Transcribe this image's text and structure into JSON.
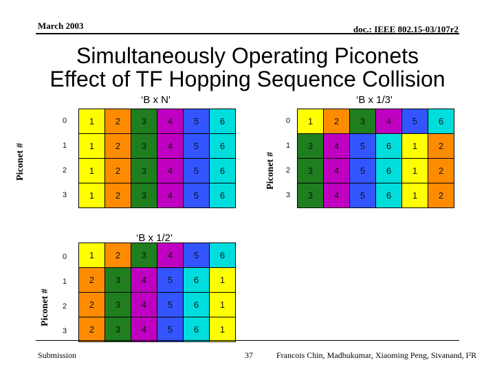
{
  "header": {
    "date": "March 2003",
    "doc_id": "doc.: IEEE 802.15-03/107r2"
  },
  "title": {
    "line1": "Simultaneously Operating Piconets",
    "line2": "Effect of TF Hopping Sequence Collision"
  },
  "colors": {
    "1": "#ffff00",
    "2": "#ff8c00",
    "3": "#1f7f1f",
    "4": "#c000c0",
    "5": "#3355ff",
    "6": "#00dddd"
  },
  "grids": [
    {
      "label": "‘B x N'",
      "axis_label": "Piconet #",
      "row_labels": [
        "0",
        "1",
        "2",
        "3"
      ],
      "rows": [
        [
          "1",
          "2",
          "3",
          "4",
          "5",
          "6"
        ],
        [
          "1",
          "2",
          "3",
          "4",
          "5",
          "6"
        ],
        [
          "1",
          "2",
          "3",
          "4",
          "5",
          "6"
        ],
        [
          "1",
          "2",
          "3",
          "4",
          "5",
          "6"
        ]
      ]
    },
    {
      "label": "‘B x 1/3'",
      "axis_label": "Piconet #",
      "row_labels": [
        "0",
        "1",
        "2",
        "3"
      ],
      "rows": [
        [
          "1",
          "2",
          "3",
          "4",
          "5",
          "6"
        ],
        [
          "3",
          "4",
          "5",
          "6",
          "1",
          "2"
        ],
        [
          "3",
          "4",
          "5",
          "6",
          "1",
          "2"
        ],
        [
          "3",
          "4",
          "5",
          "6",
          "1",
          "2"
        ]
      ]
    },
    {
      "label": "‘B x 1/2'",
      "axis_label": "Piconet #",
      "row_labels": [
        "0",
        "1",
        "2",
        "3"
      ],
      "rows": [
        [
          "1",
          "2",
          "3",
          "4",
          "5",
          "6"
        ],
        [
          "2",
          "3",
          "4",
          "5",
          "6",
          "1"
        ],
        [
          "2",
          "3",
          "4",
          "5",
          "6",
          "1"
        ],
        [
          "2",
          "3",
          "4",
          "5",
          "6",
          "1"
        ]
      ]
    }
  ],
  "footer": {
    "left": "Submission",
    "page": "37",
    "authors": "Francois Chin, Madhukumar, Xiaoming Peng, Sivanand, I²R"
  }
}
